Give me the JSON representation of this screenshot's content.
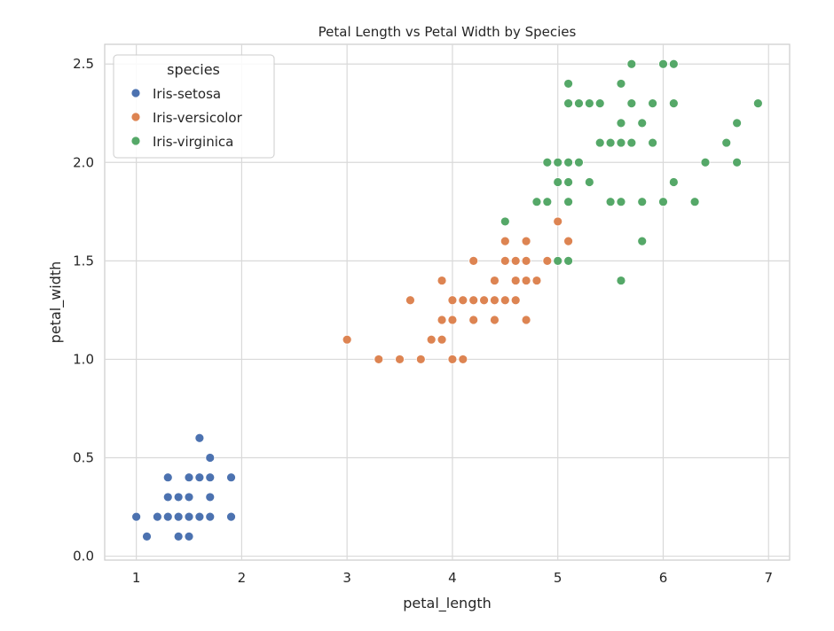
{
  "chart_data": {
    "type": "scatter",
    "title": "Petal Length vs Petal Width by Species",
    "xlabel": "petal_length",
    "ylabel": "petal_width",
    "xlim": [
      0.7,
      7.2
    ],
    "ylim": [
      -0.02,
      2.6
    ],
    "xticks": [
      1,
      2,
      3,
      4,
      5,
      6,
      7
    ],
    "yticks": [
      0.0,
      0.5,
      1.0,
      1.5,
      2.0,
      2.5
    ],
    "xtick_labels": [
      "1",
      "2",
      "3",
      "4",
      "5",
      "6",
      "7"
    ],
    "ytick_labels": [
      "0.0",
      "0.5",
      "1.0",
      "1.5",
      "2.0",
      "2.5"
    ],
    "grid": true,
    "legend": {
      "title": "species",
      "position": "top-left"
    },
    "series": [
      {
        "name": "Iris-setosa",
        "color": "#4c72b0",
        "points": [
          [
            1.0,
            0.2
          ],
          [
            1.1,
            0.1
          ],
          [
            1.2,
            0.2
          ],
          [
            1.3,
            0.2
          ],
          [
            1.3,
            0.3
          ],
          [
            1.3,
            0.4
          ],
          [
            1.4,
            0.1
          ],
          [
            1.4,
            0.2
          ],
          [
            1.4,
            0.3
          ],
          [
            1.5,
            0.1
          ],
          [
            1.5,
            0.2
          ],
          [
            1.5,
            0.3
          ],
          [
            1.5,
            0.4
          ],
          [
            1.6,
            0.2
          ],
          [
            1.6,
            0.4
          ],
          [
            1.6,
            0.6
          ],
          [
            1.7,
            0.2
          ],
          [
            1.7,
            0.3
          ],
          [
            1.7,
            0.4
          ],
          [
            1.7,
            0.5
          ],
          [
            1.9,
            0.2
          ],
          [
            1.9,
            0.4
          ]
        ]
      },
      {
        "name": "Iris-versicolor",
        "color": "#dd8452",
        "points": [
          [
            3.0,
            1.1
          ],
          [
            3.3,
            1.0
          ],
          [
            3.5,
            1.0
          ],
          [
            3.6,
            1.3
          ],
          [
            3.7,
            1.0
          ],
          [
            3.8,
            1.1
          ],
          [
            3.9,
            1.1
          ],
          [
            3.9,
            1.2
          ],
          [
            3.9,
            1.4
          ],
          [
            4.0,
            1.0
          ],
          [
            4.0,
            1.2
          ],
          [
            4.0,
            1.3
          ],
          [
            4.1,
            1.0
          ],
          [
            4.1,
            1.3
          ],
          [
            4.2,
            1.2
          ],
          [
            4.2,
            1.3
          ],
          [
            4.2,
            1.5
          ],
          [
            4.3,
            1.3
          ],
          [
            4.4,
            1.2
          ],
          [
            4.4,
            1.3
          ],
          [
            4.4,
            1.4
          ],
          [
            4.5,
            1.3
          ],
          [
            4.5,
            1.5
          ],
          [
            4.5,
            1.6
          ],
          [
            4.6,
            1.3
          ],
          [
            4.6,
            1.4
          ],
          [
            4.6,
            1.5
          ],
          [
            4.7,
            1.2
          ],
          [
            4.7,
            1.4
          ],
          [
            4.7,
            1.5
          ],
          [
            4.7,
            1.6
          ],
          [
            4.8,
            1.4
          ],
          [
            4.9,
            1.5
          ],
          [
            5.0,
            1.7
          ],
          [
            5.1,
            1.6
          ]
        ]
      },
      {
        "name": "Iris-virginica",
        "color": "#55a868",
        "points": [
          [
            4.5,
            1.7
          ],
          [
            4.8,
            1.8
          ],
          [
            4.9,
            1.8
          ],
          [
            4.9,
            2.0
          ],
          [
            5.0,
            1.5
          ],
          [
            5.0,
            1.9
          ],
          [
            5.0,
            2.0
          ],
          [
            5.1,
            1.5
          ],
          [
            5.1,
            1.8
          ],
          [
            5.1,
            1.9
          ],
          [
            5.1,
            2.0
          ],
          [
            5.1,
            2.3
          ],
          [
            5.1,
            2.4
          ],
          [
            5.2,
            2.0
          ],
          [
            5.2,
            2.3
          ],
          [
            5.3,
            1.9
          ],
          [
            5.3,
            2.3
          ],
          [
            5.4,
            2.1
          ],
          [
            5.4,
            2.3
          ],
          [
            5.5,
            1.8
          ],
          [
            5.5,
            2.1
          ],
          [
            5.6,
            1.4
          ],
          [
            5.6,
            1.8
          ],
          [
            5.6,
            2.1
          ],
          [
            5.6,
            2.2
          ],
          [
            5.6,
            2.4
          ],
          [
            5.7,
            2.1
          ],
          [
            5.7,
            2.3
          ],
          [
            5.7,
            2.5
          ],
          [
            5.8,
            1.6
          ],
          [
            5.8,
            1.8
          ],
          [
            5.8,
            2.2
          ],
          [
            5.9,
            2.1
          ],
          [
            5.9,
            2.3
          ],
          [
            6.0,
            1.8
          ],
          [
            6.0,
            2.5
          ],
          [
            6.1,
            1.9
          ],
          [
            6.1,
            2.3
          ],
          [
            6.1,
            2.5
          ],
          [
            6.3,
            1.8
          ],
          [
            6.4,
            2.0
          ],
          [
            6.6,
            2.1
          ],
          [
            6.7,
            2.0
          ],
          [
            6.7,
            2.2
          ],
          [
            6.9,
            2.3
          ]
        ]
      }
    ]
  }
}
